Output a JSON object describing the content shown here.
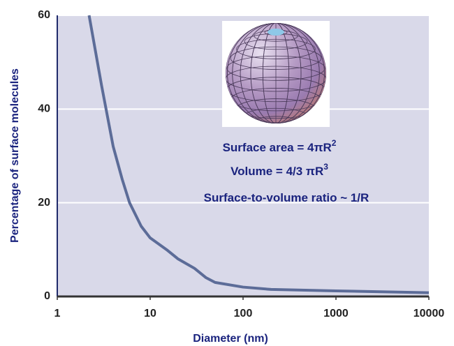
{
  "chart_data": {
    "type": "line",
    "x_label": "Diameter (nm)",
    "y_label": "Percentage of surface molecules",
    "x": [
      2.2,
      3,
      4,
      5,
      6,
      8,
      10,
      15,
      20,
      30,
      40,
      50,
      100,
      200,
      1000,
      10000
    ],
    "series": [
      {
        "color": "#5c6c98",
        "values": [
          60,
          45,
          32,
          25,
          20,
          15,
          12.5,
          10,
          8,
          6,
          4,
          3,
          2,
          1.5,
          1.2,
          0.8
        ]
      }
    ],
    "xscale": "log",
    "xlim": [
      1,
      10000
    ],
    "xticks": [
      1,
      10,
      100,
      1000,
      10000
    ],
    "ylim": [
      0,
      60
    ],
    "yticks": [
      0,
      20,
      40,
      60
    ],
    "grid": true,
    "annotations": [
      {
        "text": "Surface area = 4πR",
        "sup": "2"
      },
      {
        "text": "Volume = 4/3 πR",
        "sup": "3"
      },
      {
        "text": "Surface-to-volume ratio ~ 1/R"
      }
    ]
  }
}
